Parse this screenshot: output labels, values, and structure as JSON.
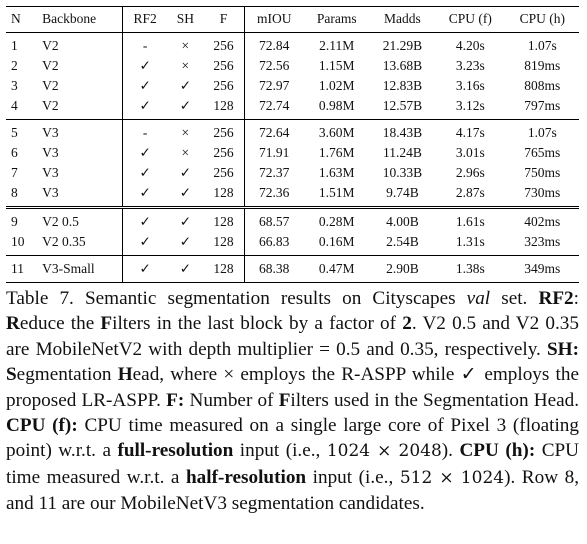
{
  "table": {
    "header": [
      "N",
      "Backbone",
      "RF2",
      "SH",
      "F",
      "mIOU",
      "Params",
      "Madds",
      "CPU (f)",
      "CPU (h)"
    ],
    "rows": [
      [
        "1",
        "V2",
        "-",
        "×",
        "256",
        "72.84",
        "2.11M",
        "21.29B",
        "4.20s",
        "1.07s"
      ],
      [
        "2",
        "V2",
        "✓",
        "×",
        "256",
        "72.56",
        "1.15M",
        "13.68B",
        "3.23s",
        "819ms"
      ],
      [
        "3",
        "V2",
        "✓",
        "✓",
        "256",
        "72.97",
        "1.02M",
        "12.83B",
        "3.16s",
        "808ms"
      ],
      [
        "4",
        "V2",
        "✓",
        "✓",
        "128",
        "72.74",
        "0.98M",
        "12.57B",
        "3.12s",
        "797ms"
      ],
      [
        "5",
        "V3",
        "-",
        "×",
        "256",
        "72.64",
        "3.60M",
        "18.43B",
        "4.17s",
        "1.07s"
      ],
      [
        "6",
        "V3",
        "✓",
        "×",
        "256",
        "71.91",
        "1.76M",
        "11.24B",
        "3.01s",
        "765ms"
      ],
      [
        "7",
        "V3",
        "✓",
        "✓",
        "256",
        "72.37",
        "1.63M",
        "10.33B",
        "2.96s",
        "750ms"
      ],
      [
        "8",
        "V3",
        "✓",
        "✓",
        "128",
        "72.36",
        "1.51M",
        "9.74B",
        "2.87s",
        "730ms"
      ],
      [
        "9",
        "V2 0.5",
        "✓",
        "✓",
        "128",
        "68.57",
        "0.28M",
        "4.00B",
        "1.61s",
        "402ms"
      ],
      [
        "10",
        "V2 0.35",
        "✓",
        "✓",
        "128",
        "66.83",
        "0.16M",
        "2.54B",
        "1.31s",
        "323ms"
      ],
      [
        "11",
        "V3-Small",
        "✓",
        "✓",
        "128",
        "68.38",
        "0.47M",
        "2.90B",
        "1.38s",
        "349ms"
      ]
    ]
  },
  "caption": [
    "Table 7. Semantic segmentation results on Cityscapes ",
    "val",
    " set. ",
    "RF2",
    ": ",
    "R",
    "educe the ",
    "F",
    "ilters in the last block by a factor of ",
    "2",
    ". V2 0.5 and V2 0.35 are MobileNetV2 with depth multiplier = 0.5 and 0.35, respectively. ",
    "SH: ",
    "S",
    "egmentation ",
    "H",
    "ead, where ",
    "×",
    " employs the R-ASPP while ",
    "✓",
    " employs the proposed LR-ASPP. ",
    "F:",
    " Number of ",
    "F",
    "ilters used in the Segmentation Head. ",
    "CPU (f):",
    " CPU time measured on a single large core of Pixel 3 (floating point) w.r.t. a ",
    "full-resolution",
    " input (i.e., ",
    "1024 × 2048",
    "). ",
    "CPU (h):",
    " CPU time measured w.r.t. a ",
    "half-resolution",
    " input (i.e., ",
    "512 × 1024",
    "). Row 8, and 11 are our MobileNetV3 segmentation candidates."
  ]
}
